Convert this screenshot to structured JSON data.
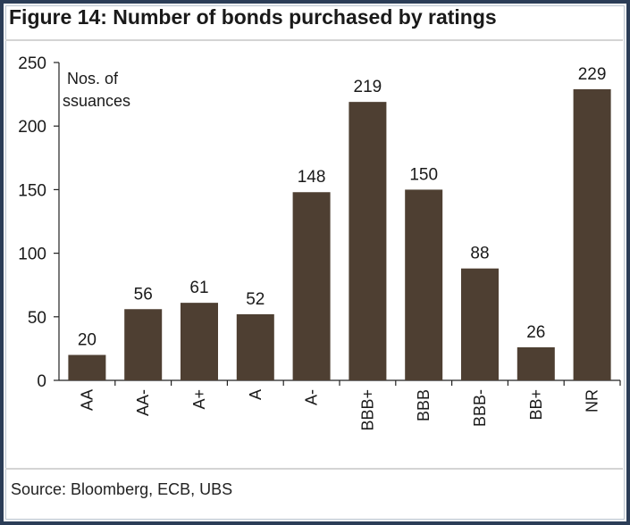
{
  "figure": {
    "title": "Figure 14: Number of bonds purchased by ratings",
    "source": "Source: Bloomberg, ECB, UBS"
  },
  "chart_data": {
    "type": "bar",
    "categories": [
      "AA",
      "AA-",
      "A+",
      "A",
      "A-",
      "BBB+",
      "BBB",
      "BBB-",
      "BB+",
      "NR"
    ],
    "values": [
      20,
      56,
      61,
      52,
      148,
      219,
      150,
      88,
      26,
      229
    ],
    "ylabel_lines": [
      "Nos. of",
      "ssuances"
    ],
    "ylim": [
      0,
      250
    ],
    "yticks": [
      0,
      50,
      100,
      150,
      200,
      250
    ],
    "data_labels": true,
    "grid": false,
    "legend": "none",
    "bar_color": "#4e3f32"
  }
}
